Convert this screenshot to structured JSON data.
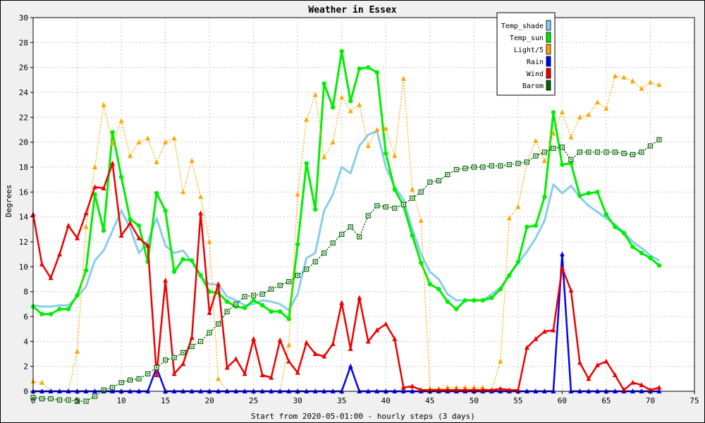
{
  "chart_data": {
    "type": "line",
    "title": "Weather in Essex",
    "xlabel": "Start from 2020-05-01:00 - hourly steps (3 days)",
    "ylabel": "Degrees",
    "xlim": [
      0,
      75
    ],
    "ylim": [
      0,
      30
    ],
    "x_ticks": [
      0,
      5,
      10,
      15,
      20,
      25,
      30,
      35,
      40,
      45,
      50,
      55,
      60,
      65,
      70,
      75
    ],
    "y_ticks": [
      0,
      2,
      4,
      6,
      8,
      10,
      12,
      14,
      16,
      18,
      20,
      22,
      24,
      26,
      28,
      30
    ],
    "grid": true,
    "legend_position": "top-right",
    "x": [
      0,
      1,
      2,
      3,
      4,
      5,
      6,
      7,
      8,
      9,
      10,
      11,
      12,
      13,
      14,
      15,
      16,
      17,
      18,
      19,
      20,
      21,
      22,
      23,
      24,
      25,
      26,
      27,
      28,
      29,
      30,
      31,
      32,
      33,
      34,
      35,
      36,
      37,
      38,
      39,
      40,
      41,
      42,
      43,
      44,
      45,
      46,
      47,
      48,
      49,
      50,
      51,
      52,
      53,
      54,
      55,
      56,
      57,
      58,
      59,
      60,
      61,
      62,
      63,
      64,
      65,
      66,
      67,
      68,
      69,
      70,
      71
    ],
    "series": [
      {
        "name": "Temp_shade",
        "color": "#87ceeb",
        "marker": "none",
        "values": [
          6.9,
          6.8,
          6.8,
          6.9,
          6.9,
          7.6,
          8.4,
          10.5,
          11.3,
          12.9,
          14.5,
          13.1,
          11.1,
          12.0,
          13.9,
          11.7,
          11.1,
          11.3,
          10.4,
          9.2,
          8.6,
          8.6,
          7.6,
          7.3,
          6.9,
          7.0,
          7.3,
          7.2,
          7.0,
          6.5,
          7.8,
          10.7,
          11.1,
          14.5,
          15.8,
          18.0,
          17.5,
          19.7,
          20.6,
          20.9,
          18.0,
          16.4,
          15.4,
          13.0,
          11.0,
          9.6,
          9.0,
          7.8,
          7.3,
          7.3,
          7.3,
          7.3,
          7.8,
          8.3,
          9.4,
          10.3,
          11.2,
          12.3,
          13.7,
          16.6,
          15.9,
          16.5,
          15.6,
          14.9,
          14.4,
          13.9,
          13.4,
          12.8,
          12.0,
          11.5,
          10.9,
          10.5
        ]
      },
      {
        "name": "Temp_sun",
        "color": "#00ee00",
        "marker": "dot",
        "values": [
          6.8,
          6.2,
          6.2,
          6.6,
          6.6,
          7.7,
          9.7,
          15.8,
          12.9,
          20.8,
          17.2,
          13.8,
          13.3,
          10.4,
          15.9,
          14.5,
          9.6,
          10.6,
          10.5,
          9.3,
          8.0,
          7.9,
          7.2,
          6.8,
          6.7,
          7.3,
          6.9,
          6.4,
          6.4,
          5.8,
          11.8,
          18.3,
          14.6,
          24.7,
          22.8,
          27.3,
          23.3,
          25.9,
          26.0,
          25.6,
          19.1,
          16.2,
          14.9,
          12.5,
          10.3,
          8.6,
          8.2,
          7.2,
          6.6,
          7.3,
          7.3,
          7.3,
          7.5,
          8.2,
          9.3,
          10.4,
          13.2,
          13.3,
          15.6,
          22.4,
          18.2,
          18.3,
          15.7,
          15.9,
          16.0,
          14.2,
          13.2,
          12.7,
          11.6,
          11.1,
          10.7,
          10.1
        ]
      },
      {
        "name": "Light/5",
        "color": "#ffa500",
        "marker": "triangle",
        "values": [
          0.8,
          0.7,
          0.0,
          0.0,
          0.0,
          3.2,
          13.2,
          18.0,
          23.0,
          19.9,
          21.7,
          18.9,
          20.0,
          20.3,
          18.4,
          20.0,
          20.3,
          16.0,
          18.5,
          15.6,
          12.0,
          1.0,
          0.0,
          0.0,
          0.0,
          0.0,
          0.0,
          0.0,
          0.0,
          3.7,
          15.8,
          21.8,
          23.8,
          18.8,
          20.0,
          23.6,
          22.5,
          23.0,
          19.7,
          21.0,
          21.1,
          18.9,
          25.1,
          16.2,
          13.7,
          0.2,
          0.2,
          0.3,
          0.3,
          0.3,
          0.3,
          0.3,
          0.0,
          2.4,
          13.9,
          14.8,
          18.4,
          20.1,
          18.5,
          20.7,
          22.4,
          20.4,
          22.0,
          22.2,
          23.2,
          22.7,
          25.3,
          25.2,
          24.9,
          24.3,
          24.8,
          24.6
        ]
      },
      {
        "name": "Rain",
        "color": "#0000ff",
        "marker": "triangle",
        "values": [
          0,
          0,
          0,
          0,
          0,
          0,
          0,
          0,
          0,
          0,
          0,
          0,
          0,
          0,
          1.9,
          0,
          0,
          0,
          0,
          0,
          0,
          0,
          0,
          0,
          0,
          0,
          0,
          0,
          0,
          0,
          0,
          0,
          0,
          0,
          0,
          0,
          2.0,
          0,
          0,
          0,
          0,
          0,
          0,
          0,
          0,
          0,
          0,
          0,
          0,
          0,
          0,
          0,
          0,
          0,
          0,
          0,
          0,
          0,
          0,
          0,
          11.0,
          0,
          0,
          0,
          0,
          0,
          0,
          0,
          0,
          0,
          0,
          0
        ]
      },
      {
        "name": "Wind",
        "color": "#ee0000",
        "marker": "triangle",
        "values": [
          14.2,
          10.2,
          9.1,
          11.0,
          13.3,
          12.3,
          14.3,
          16.4,
          16.3,
          18.3,
          12.5,
          13.5,
          12.3,
          11.7,
          1.3,
          8.9,
          1.4,
          2.2,
          4.3,
          14.3,
          6.3,
          8.6,
          1.9,
          2.6,
          1.4,
          4.2,
          1.3,
          1.1,
          4.1,
          2.4,
          1.5,
          3.9,
          3.0,
          2.8,
          3.8,
          7.1,
          3.4,
          7.5,
          4.0,
          4.9,
          5.4,
          4.2,
          0.3,
          0.4,
          0.1,
          0.1,
          0.1,
          0.1,
          0.1,
          0.1,
          0.1,
          0.1,
          0.1,
          0.2,
          0.1,
          0.1,
          3.5,
          4.2,
          4.8,
          4.9,
          9.9,
          8.1,
          2.3,
          1.0,
          2.1,
          2.4,
          1.3,
          0.1,
          0.7,
          0.5,
          0.1,
          0.3
        ]
      },
      {
        "name": "Barom",
        "color": "#006400",
        "marker": "square",
        "values": [
          -0.5,
          -0.6,
          -0.6,
          -0.7,
          -0.7,
          -0.8,
          -0.8,
          -0.4,
          0.1,
          0.3,
          0.7,
          0.9,
          1.0,
          1.4,
          1.9,
          2.5,
          2.7,
          3.1,
          3.6,
          4.0,
          4.7,
          5.4,
          6.4,
          7.0,
          7.6,
          7.7,
          7.8,
          8.2,
          8.5,
          8.8,
          9.3,
          9.8,
          10.4,
          11.1,
          11.9,
          12.6,
          13.2,
          12.4,
          14.1,
          14.9,
          14.8,
          14.7,
          15.0,
          15.5,
          16.0,
          16.8,
          16.9,
          17.4,
          17.8,
          17.9,
          18.0,
          18.0,
          18.1,
          18.1,
          18.2,
          18.3,
          18.4,
          18.9,
          19.2,
          19.5,
          19.6,
          18.6,
          19.2,
          19.2,
          19.2,
          19.2,
          19.2,
          19.1,
          19.0,
          19.2,
          19.7,
          20.2
        ]
      }
    ]
  }
}
